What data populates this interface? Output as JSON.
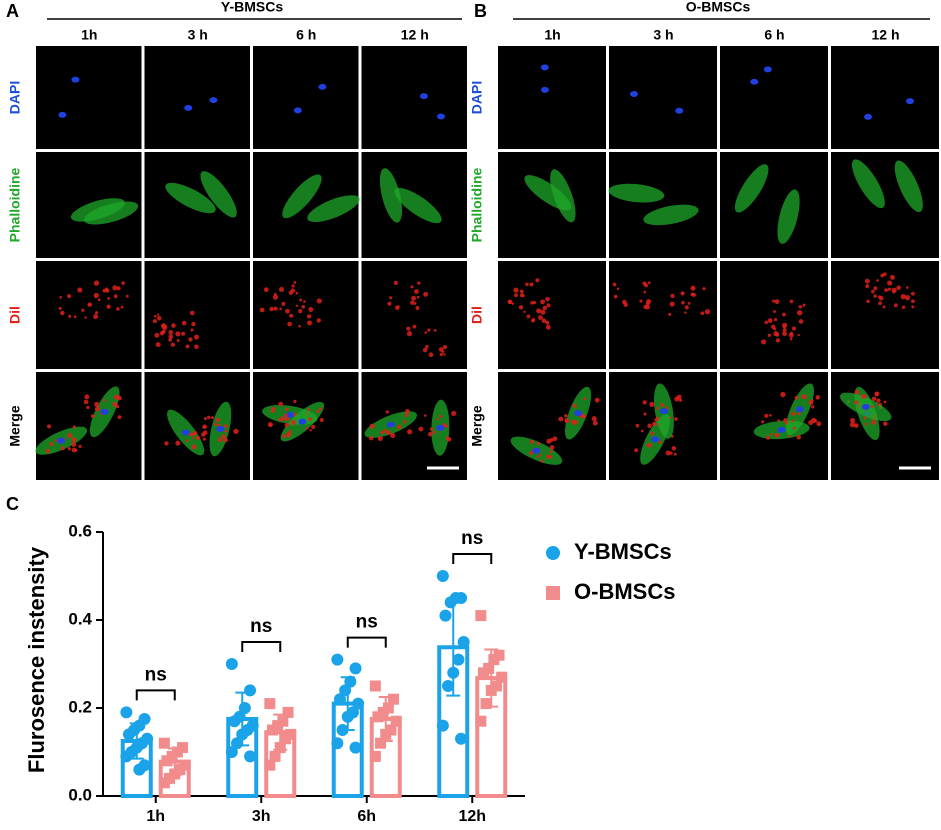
{
  "panel_a": {
    "label": "A",
    "title": "Y-BMSCs",
    "columns": [
      "1h",
      "3 h",
      "6 h",
      "12 h"
    ],
    "rows": [
      "DAPI",
      "Phalloidine",
      "Dil",
      "Merge"
    ]
  },
  "panel_b": {
    "label": "B",
    "title": "O-BMSCs",
    "columns": [
      "1h",
      "3 h",
      "6 h",
      "12 h"
    ],
    "rows": [
      "DAPI",
      "Phalloidine",
      "Dil",
      "Merge"
    ]
  },
  "chart_data": {
    "type": "bar",
    "panel_label": "C",
    "ylabel": "Flurosence instensity",
    "categories": [
      "1h",
      "3h",
      "6h",
      "12h"
    ],
    "ylim": [
      0,
      0.6
    ],
    "yticks": [
      {
        "value": 0,
        "label": "0.0"
      },
      0.2,
      0.4,
      0.6
    ],
    "series": [
      {
        "name": "Y-BMSCs",
        "color": "#1aa3e8",
        "values": [
          0.125,
          0.175,
          0.21,
          0.338
        ],
        "errors": [
          0.04,
          0.06,
          0.06,
          0.11
        ],
        "points": [
          [
            0.19,
            0.175,
            0.16,
            0.15,
            0.14,
            0.13,
            0.12,
            0.11,
            0.1,
            0.09,
            0.07,
            0.06
          ],
          [
            0.3,
            0.24,
            0.2,
            0.18,
            0.17,
            0.16,
            0.15,
            0.14,
            0.12,
            0.1,
            0.09
          ],
          [
            0.31,
            0.29,
            0.26,
            0.24,
            0.22,
            0.21,
            0.19,
            0.18,
            0.15,
            0.12,
            0.11
          ],
          [
            0.5,
            0.45,
            0.45,
            0.44,
            0.41,
            0.35,
            0.31,
            0.28,
            0.25,
            0.16,
            0.13
          ]
        ]
      },
      {
        "name": "O-BMSCs",
        "color": "#f28b8b",
        "values": [
          0.078,
          0.145,
          0.175,
          0.268
        ],
        "errors": [
          0.03,
          0.04,
          0.05,
          0.065
        ],
        "points": [
          [
            0.12,
            0.11,
            0.1,
            0.09,
            0.08,
            0.07,
            0.06,
            0.05,
            0.04,
            0.03
          ],
          [
            0.21,
            0.19,
            0.17,
            0.16,
            0.15,
            0.14,
            0.13,
            0.11,
            0.09,
            0.07
          ],
          [
            0.25,
            0.22,
            0.2,
            0.19,
            0.18,
            0.17,
            0.15,
            0.14,
            0.12,
            0.09
          ],
          [
            0.41,
            0.32,
            0.31,
            0.29,
            0.28,
            0.27,
            0.25,
            0.24,
            0.21,
            0.17
          ]
        ]
      }
    ],
    "annotations": [
      "ns",
      "ns",
      "ns",
      "ns"
    ]
  }
}
